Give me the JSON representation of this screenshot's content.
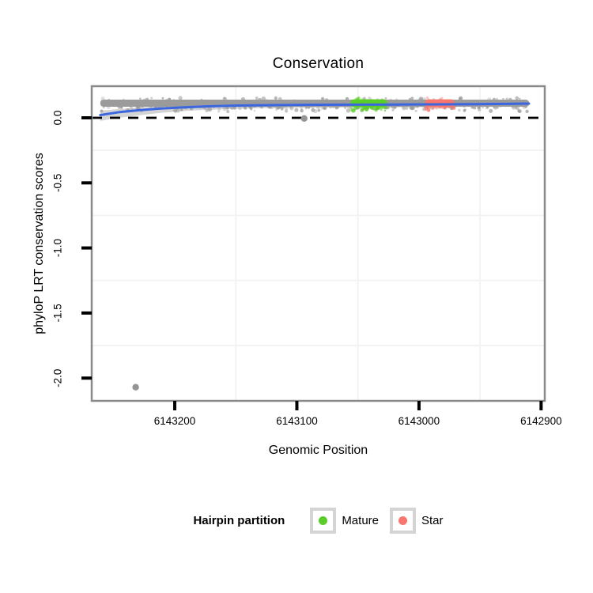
{
  "title": "Conservation",
  "axes": {
    "x": {
      "label": "Genomic Position",
      "ticks": [
        {
          "value": 6143200,
          "label": "6143200"
        },
        {
          "value": 6143100,
          "label": "6143100"
        },
        {
          "value": 6143000,
          "label": "6143000"
        },
        {
          "value": 6142900,
          "label": "6142900"
        }
      ]
    },
    "y": {
      "label": "phyloP LRT conservation scores",
      "ticks": [
        {
          "value": 0.0,
          "label": "0.0"
        },
        {
          "value": -0.5,
          "label": "-0.5"
        },
        {
          "value": -1.0,
          "label": "-1.0"
        },
        {
          "value": -1.5,
          "label": "-1.5"
        },
        {
          "value": -2.0,
          "label": "-2.0"
        }
      ]
    }
  },
  "legend": {
    "title": "Hairpin partition",
    "items": [
      {
        "label": "Mature",
        "color": "#5acd28"
      },
      {
        "label": "Star",
        "color": "#f8766d"
      }
    ]
  },
  "colors": {
    "panel_border": "#8a8a8a",
    "minor_gridline": "#f3f3f3",
    "tick": "#000000",
    "precursor_gray": "#9b9b9b",
    "outlier_gray": "#959595",
    "smooth_blue": "#3b66e0",
    "ribbon_gray": "#c9c9c9",
    "zero_line": "#000000",
    "legend_key_border": "#d4d4d4"
  },
  "chart_data": {
    "type": "scatter",
    "title": "Conservation",
    "xlabel": "Genomic Position",
    "ylabel": "phyloP LRT conservation scores",
    "x_axis_reversed": true,
    "xlim": [
      6143268,
      6142897
    ],
    "ylim": [
      -2.175,
      0.243
    ],
    "x_ticks": [
      6143200,
      6143100,
      6143000,
      6142900
    ],
    "y_ticks": [
      0.0,
      -0.5,
      -1.0,
      -1.5,
      -2.0
    ],
    "x_minor_gridlines": [
      6143150,
      6143050,
      6142950
    ],
    "y_minor_gridlines": [
      -0.25,
      -0.75,
      -1.25,
      -1.75
    ],
    "zero_line_y": 0.0,
    "grid": "minor-only",
    "legend_position": "bottom",
    "series": [
      {
        "name": "Hairpin precursor",
        "kind": "point-band",
        "color": "#9b9b9b",
        "x_start": 6143261,
        "x_end": 6142910,
        "y_top": 0.14,
        "y_bottom": 0.085,
        "y_speckle_min": 0.048,
        "n_speckles": 300
      },
      {
        "name": "Mature",
        "kind": "point-band",
        "color": "#5acd28",
        "x_start": 6143056,
        "x_end": 6143026,
        "y_top": 0.142,
        "y_bottom": 0.082,
        "y_speckle_min": 0.055,
        "n_speckles": 40
      },
      {
        "name": "Star",
        "kind": "point-band",
        "color": "#f8766d",
        "x_start": 6142995,
        "x_end": 6142971,
        "y_top": 0.142,
        "y_bottom": 0.082,
        "y_speckle_min": 0.055,
        "n_speckles": 32
      },
      {
        "name": "Outliers",
        "kind": "points",
        "color": "#959595",
        "points": [
          [
            6143232,
            -2.07
          ],
          [
            6143094,
            -0.005
          ]
        ]
      }
    ],
    "smooth": {
      "color": "#3b66e0",
      "ribbon_color": "#c9c9c9",
      "points": [
        [
          6143261,
          0.021
        ],
        [
          6143246,
          0.043
        ],
        [
          6143230,
          0.058
        ],
        [
          6143214,
          0.07
        ],
        [
          6143194,
          0.08
        ],
        [
          6143175,
          0.087
        ],
        [
          6143149,
          0.094
        ],
        [
          6143116,
          0.098
        ],
        [
          6143084,
          0.1
        ],
        [
          6143052,
          0.101
        ],
        [
          6143019,
          0.102
        ],
        [
          6142987,
          0.103
        ],
        [
          6142954,
          0.105
        ],
        [
          6142928,
          0.107
        ],
        [
          6142910,
          0.109
        ]
      ],
      "ribbon_lower": [
        [
          6143261,
          -0.024
        ],
        [
          6143246,
          0.0
        ],
        [
          6143230,
          0.018
        ],
        [
          6143214,
          0.036
        ],
        [
          6143194,
          0.052
        ],
        [
          6143175,
          0.061
        ],
        [
          6143149,
          0.07
        ],
        [
          6143116,
          0.076
        ],
        [
          6143084,
          0.079
        ],
        [
          6143052,
          0.08
        ],
        [
          6143019,
          0.081
        ],
        [
          6142987,
          0.083
        ],
        [
          6142954,
          0.085
        ],
        [
          6142928,
          0.088
        ],
        [
          6142910,
          0.091
        ]
      ],
      "ribbon_upper": [
        [
          6143261,
          0.055
        ],
        [
          6143246,
          0.067
        ],
        [
          6143230,
          0.079
        ],
        [
          6143214,
          0.088
        ],
        [
          6143194,
          0.097
        ],
        [
          6143175,
          0.102
        ],
        [
          6143149,
          0.109
        ],
        [
          6143116,
          0.113
        ],
        [
          6143084,
          0.117
        ],
        [
          6143052,
          0.118
        ],
        [
          6143019,
          0.118
        ],
        [
          6142987,
          0.12
        ],
        [
          6142954,
          0.121
        ],
        [
          6142928,
          0.124
        ],
        [
          6142910,
          0.128
        ]
      ]
    }
  }
}
